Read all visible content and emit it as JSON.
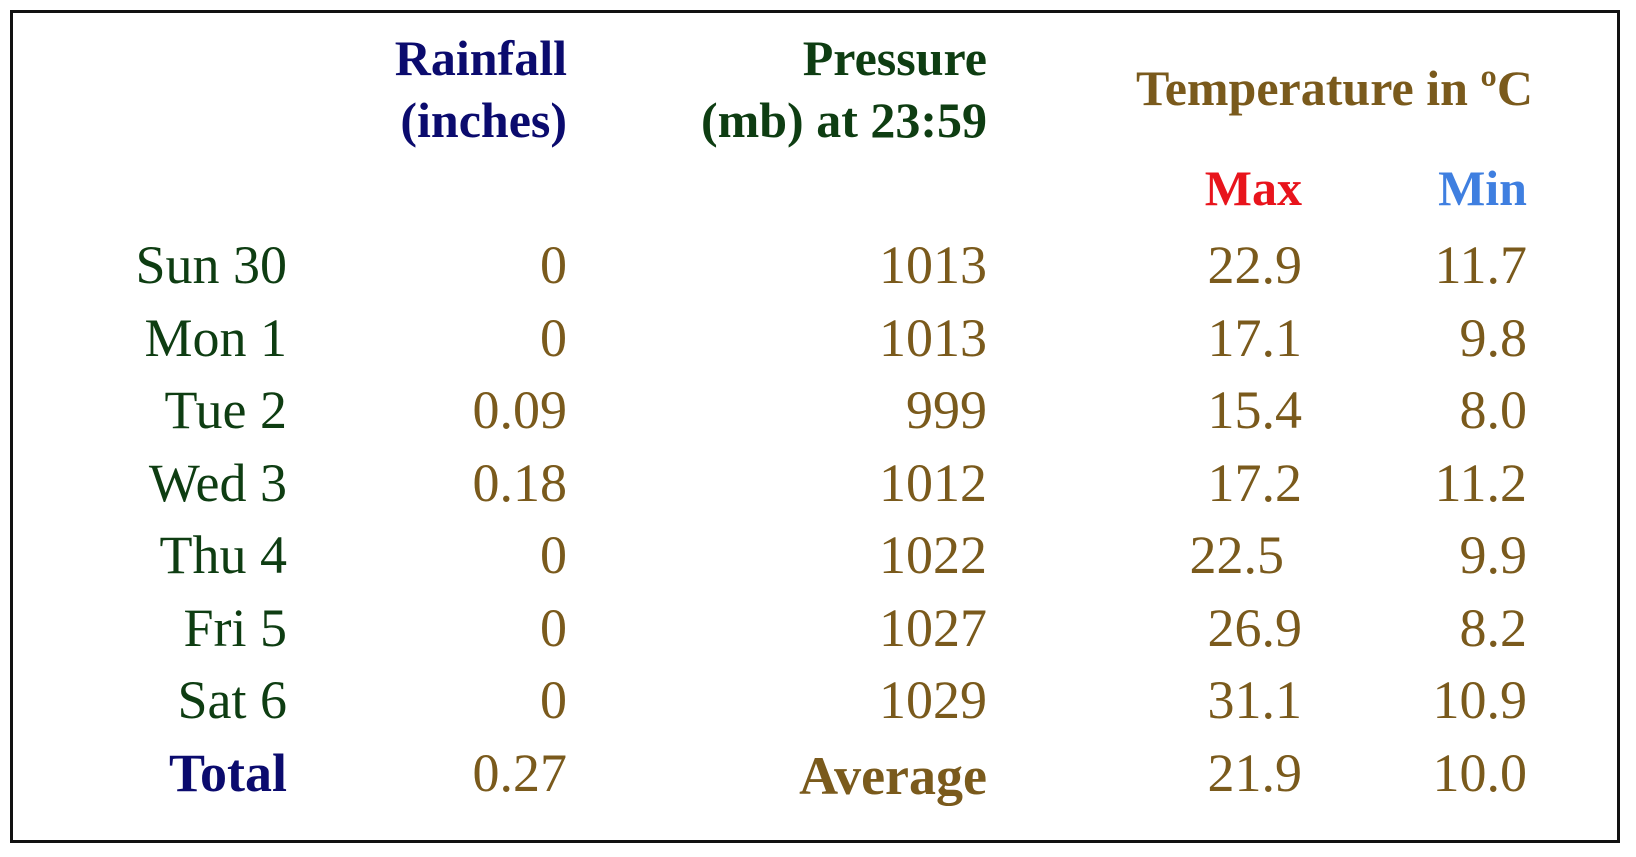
{
  "colors": {
    "rainfall_header": "#0b0b6e",
    "pressure_header": "#0e3d12",
    "temperature_header": "#7a5a1c",
    "max_header": "#e8141c",
    "min_header": "#3f7fe0",
    "day_label": "#0e3d12",
    "value": "#7a5a1c",
    "total_label": "#0b0b6e",
    "average_label": "#7a5a1c"
  },
  "chart_data": {
    "type": "table",
    "headers": {
      "rainfall": [
        "Rainfall",
        "(inches)"
      ],
      "pressure": [
        "Pressure",
        "(mb) at 23:59"
      ],
      "temperature": "Temperature in ºC",
      "max": "Max",
      "min": "Min"
    },
    "rows": [
      {
        "day": "Sun 30",
        "rainfall": "0",
        "pressure": "1013",
        "max": "22.9",
        "min": "11.7"
      },
      {
        "day": "Mon 1",
        "rainfall": "0",
        "pressure": "1013",
        "max": "17.1",
        "min": "9.8"
      },
      {
        "day": "Tue 2",
        "rainfall": "0.09",
        "pressure": "999",
        "max": "15.4",
        "min": "8.0"
      },
      {
        "day": "Wed 3",
        "rainfall": "0.18",
        "pressure": "1012",
        "max": "17.2",
        "min": "11.2"
      },
      {
        "day": "Thu 4",
        "rainfall": "0",
        "pressure": "1022",
        "max": "22.5",
        "min": "9.9"
      },
      {
        "day": "Fri 5",
        "rainfall": "0",
        "pressure": "1027",
        "max": "26.9",
        "min": "8.2"
      },
      {
        "day": "Sat 6",
        "rainfall": "0",
        "pressure": "1029",
        "max": "31.1",
        "min": "10.9"
      }
    ],
    "summary": {
      "total_label": "Total",
      "rainfall_total": "0.27",
      "average_label": "Average",
      "max_average": "21.9",
      "min_average": "10.0"
    }
  }
}
